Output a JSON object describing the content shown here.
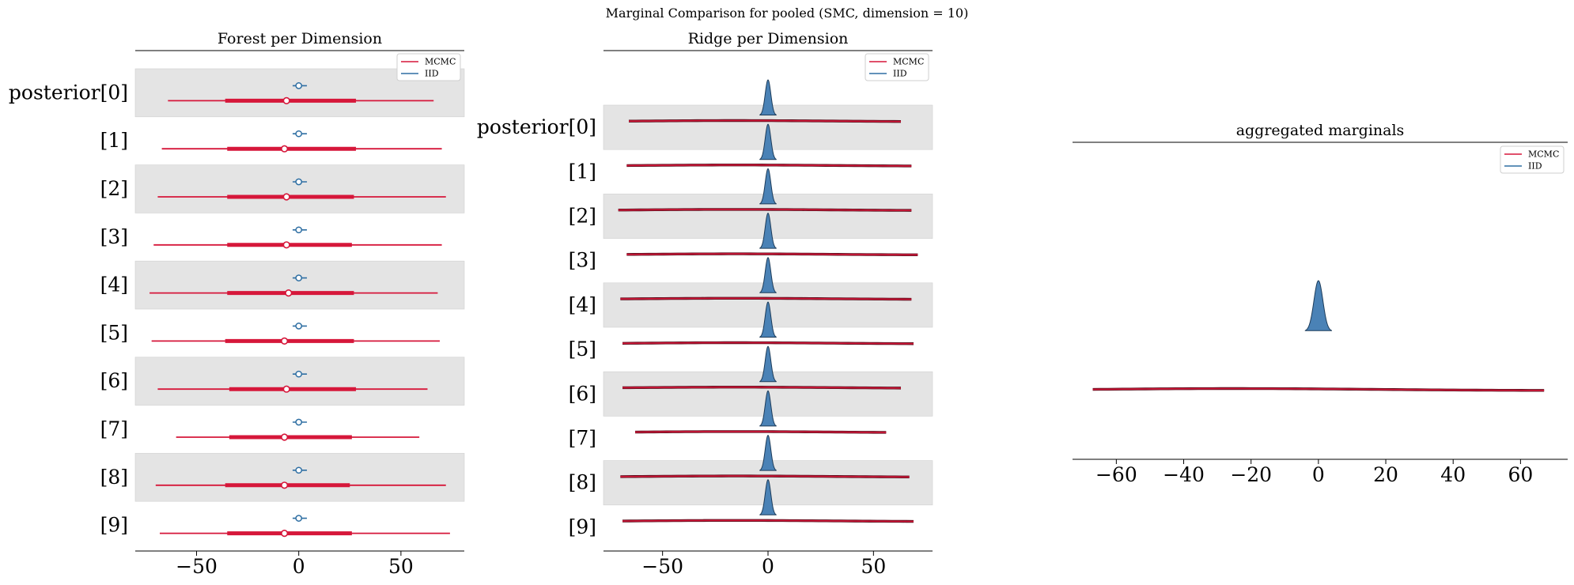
{
  "suptitle": "Marginal Comparison for pooled (SMC, dimension = 10)",
  "colors": {
    "mcmc": "#d6173a",
    "iid": "#2f6fa3",
    "iid_fill": "#4a82b6",
    "band": "#e4e4e4"
  },
  "legend": {
    "mcmc": "MCMC",
    "iid": "IID"
  },
  "chart_data": [
    {
      "type": "forest",
      "title": "Forest per Dimension",
      "row_labels": [
        "posterior[0]",
        "[1]",
        "[2]",
        "[3]",
        "[4]",
        "[5]",
        "[6]",
        "[7]",
        "[8]",
        "[9]"
      ],
      "xticks": [
        -50,
        0,
        50
      ],
      "xlim": [
        -80,
        81
      ],
      "legend_position": "upper right",
      "series": [
        {
          "name": "MCMC",
          "median": [
            -6,
            -7,
            -6,
            -6,
            -5,
            -7,
            -6,
            -7,
            -7,
            -7
          ],
          "iqr": [
            [
              -36,
              28
            ],
            [
              -35,
              28
            ],
            [
              -35,
              27
            ],
            [
              -35,
              26
            ],
            [
              -35,
              27
            ],
            [
              -36,
              27
            ],
            [
              -34,
              28
            ],
            [
              -34,
              26
            ],
            [
              -36,
              25
            ],
            [
              -35,
              26
            ]
          ],
          "hdi": [
            [
              -64,
              66
            ],
            [
              -67,
              70
            ],
            [
              -69,
              72
            ],
            [
              -71,
              70
            ],
            [
              -73,
              68
            ],
            [
              -72,
              69
            ],
            [
              -69,
              63
            ],
            [
              -60,
              59
            ],
            [
              -70,
              72
            ],
            [
              -68,
              74
            ]
          ]
        },
        {
          "name": "IID",
          "median": [
            0,
            0,
            0,
            0,
            0,
            0,
            0,
            0,
            0,
            0
          ],
          "iqr": [
            [
              -1,
              1
            ],
            [
              -1,
              1
            ],
            [
              -1,
              1
            ],
            [
              -1,
              1
            ],
            [
              -1,
              1
            ],
            [
              -1,
              1
            ],
            [
              -1,
              1
            ],
            [
              -1,
              1
            ],
            [
              -1,
              1
            ],
            [
              -1,
              1
            ]
          ],
          "hdi": [
            [
              -3,
              4
            ],
            [
              -3,
              4
            ],
            [
              -3,
              4
            ],
            [
              -3,
              4
            ],
            [
              -3,
              4
            ],
            [
              -3,
              4
            ],
            [
              -3,
              4
            ],
            [
              -3,
              4
            ],
            [
              -3,
              4
            ],
            [
              -3,
              4
            ]
          ]
        }
      ]
    },
    {
      "type": "ridge",
      "title": "Ridge per Dimension",
      "row_labels": [
        "posterior[0]",
        "[1]",
        "[2]",
        "[3]",
        "[4]",
        "[5]",
        "[6]",
        "[7]",
        "[8]",
        "[9]"
      ],
      "xticks": [
        -50,
        0,
        50
      ],
      "xlim": [
        -78,
        78
      ],
      "legend_position": "upper right",
      "series": [
        {
          "name": "MCMC",
          "range": [
            [
              -66,
              63
            ],
            [
              -67,
              68
            ],
            [
              -71,
              68
            ],
            [
              -67,
              71
            ],
            [
              -70,
              68
            ],
            [
              -69,
              69
            ],
            [
              -69,
              63
            ],
            [
              -63,
              56
            ],
            [
              -70,
              67
            ],
            [
              -69,
              69
            ]
          ]
        },
        {
          "name": "IID",
          "center": 0,
          "range": [
            -4,
            4
          ]
        }
      ]
    },
    {
      "type": "kde",
      "title": "aggregated marginals",
      "xticks": [
        -60,
        -40,
        -20,
        0,
        20,
        40,
        60
      ],
      "xlim": [
        -73,
        74
      ],
      "legend_position": "upper right",
      "series": [
        {
          "name": "MCMC",
          "range": [
            -67,
            67
          ]
        },
        {
          "name": "IID",
          "center": 0,
          "range": [
            -4,
            4
          ]
        }
      ]
    }
  ]
}
